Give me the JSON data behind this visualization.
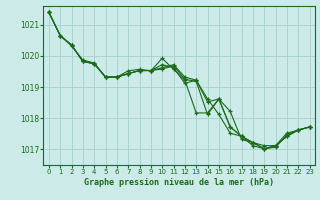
{
  "background_color": "#cceae7",
  "grid_color": "#aad4d0",
  "line_color": "#1a6b1a",
  "marker_color": "#1a6b1a",
  "xlabel": "Graphe pression niveau de la mer (hPa)",
  "xlim": [
    -0.5,
    23.5
  ],
  "ylim": [
    1016.5,
    1021.6
  ],
  "yticks": [
    1017,
    1018,
    1019,
    1020,
    1021
  ],
  "xticks": [
    0,
    1,
    2,
    3,
    4,
    5,
    6,
    7,
    8,
    9,
    10,
    11,
    12,
    13,
    14,
    15,
    16,
    17,
    18,
    19,
    20,
    21,
    22,
    23
  ],
  "series": [
    [
      1021.4,
      1020.65,
      1020.35,
      1019.82,
      1019.75,
      1019.32,
      1019.32,
      1019.43,
      1019.53,
      1019.53,
      1019.58,
      1019.68,
      1019.25,
      1019.18,
      1018.12,
      1018.62,
      1018.22,
      1017.32,
      1017.22,
      1017.12,
      1017.12,
      1017.52,
      1017.62,
      1017.72
    ],
    [
      1021.4,
      1020.65,
      1020.35,
      1019.82,
      1019.75,
      1019.32,
      1019.32,
      1019.43,
      1019.53,
      1019.53,
      1019.72,
      1019.62,
      1019.12,
      1019.22,
      1018.52,
      1018.62,
      1017.72,
      1017.42,
      1017.22,
      1017.02,
      1017.12,
      1017.42,
      1017.62,
      1017.72
    ],
    [
      1021.4,
      1020.65,
      1020.35,
      1019.82,
      1019.75,
      1019.32,
      1019.32,
      1019.43,
      1019.53,
      1019.53,
      1019.62,
      1019.72,
      1019.32,
      1019.22,
      1018.62,
      1018.12,
      1017.52,
      1017.42,
      1017.22,
      1017.02,
      1017.12,
      1017.42,
      1017.62,
      1017.72
    ],
    [
      1021.4,
      1020.65,
      1020.32,
      1019.87,
      1019.77,
      1019.32,
      1019.32,
      1019.52,
      1019.57,
      1019.52,
      1019.92,
      1019.57,
      1019.22,
      1018.17,
      1018.17,
      1018.62,
      1017.72,
      1017.42,
      1017.12,
      1017.02,
      1017.07,
      1017.47,
      1017.62,
      1017.72
    ]
  ]
}
